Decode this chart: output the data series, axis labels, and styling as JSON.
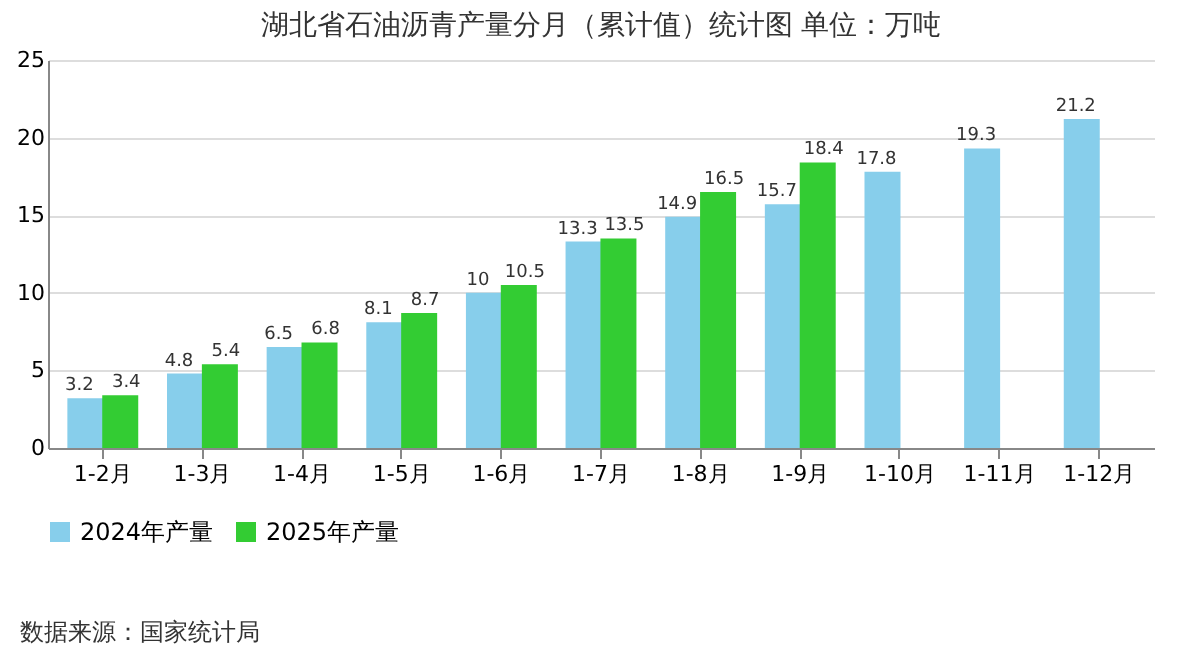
{
  "chart_data": {
    "type": "bar",
    "title": "湖北省石油沥青产量分月（累计值）统计图 单位：万吨",
    "categories": [
      "1-2月",
      "1-3月",
      "1-4月",
      "1-5月",
      "1-6月",
      "1-7月",
      "1-8月",
      "1-9月",
      "1-10月",
      "1-11月",
      "1-12月"
    ],
    "series": [
      {
        "name": "2024年产量",
        "color": "#87ceeb",
        "values": [
          3.2,
          4.8,
          6.5,
          8.1,
          10,
          13.3,
          14.9,
          15.7,
          17.8,
          19.3,
          21.2
        ]
      },
      {
        "name": "2025年产量",
        "color": "#33cc33",
        "values": [
          3.4,
          5.4,
          6.8,
          8.7,
          10.5,
          13.5,
          16.5,
          18.4,
          null,
          null,
          null
        ]
      }
    ],
    "ylim": [
      0,
      25
    ],
    "yticks": [
      0,
      5,
      10,
      15,
      20,
      25
    ],
    "grid": "y",
    "legend": "bottom",
    "data_labels": true,
    "annotations": [
      "数据来源：国家统计局"
    ]
  }
}
